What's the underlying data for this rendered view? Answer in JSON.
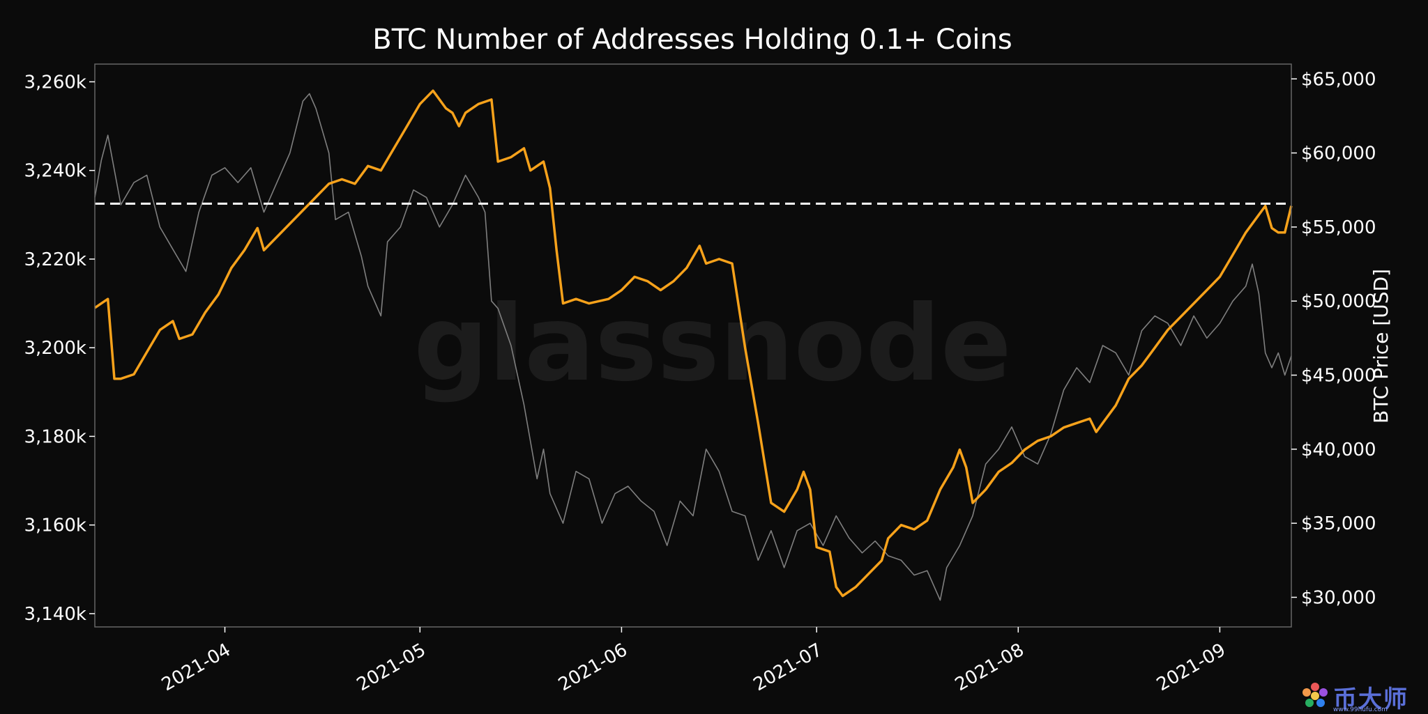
{
  "chart_data": {
    "type": "line",
    "title": "BTC Number of Addresses Holding 0.1+ Coins",
    "watermark": "glassnode",
    "y_left": {
      "range": [
        3137,
        3264
      ],
      "ticks": [
        3140,
        3160,
        3180,
        3200,
        3220,
        3240,
        3260
      ],
      "tick_labels": [
        "3,140k",
        "3,160k",
        "3,180k",
        "3,200k",
        "3,220k",
        "3,240k",
        "3,260k"
      ]
    },
    "y_right": {
      "label": "BTC Price [USD]",
      "range": [
        28000,
        66000
      ],
      "ticks": [
        30000,
        35000,
        40000,
        45000,
        50000,
        55000,
        60000,
        65000
      ],
      "tick_labels": [
        "$30,000",
        "$35,000",
        "$40,000",
        "$45,000",
        "$50,000",
        "$55,000",
        "$60,000",
        "$65,000"
      ]
    },
    "x": {
      "range": [
        "2021-03-12",
        "2021-09-12"
      ],
      "ticks": [
        "2021-04-01",
        "2021-05-01",
        "2021-06-01",
        "2021-07-01",
        "2021-08-01",
        "2021-09-01"
      ],
      "tick_labels": [
        "2021-04",
        "2021-05",
        "2021-06",
        "2021-07",
        "2021-08",
        "2021-09"
      ]
    },
    "reference_line": {
      "value": 3232.5,
      "style": "dashed",
      "color": "#ffffff"
    },
    "series": [
      {
        "name": "Addresses Holding 0.1+ Coins (k)",
        "axis": "left",
        "color": "#f7a21b",
        "points": [
          [
            "2021-03-12",
            3209
          ],
          [
            "2021-03-13",
            3210
          ],
          [
            "2021-03-14",
            3211
          ],
          [
            "2021-03-15",
            3193
          ],
          [
            "2021-03-16",
            3193
          ],
          [
            "2021-03-18",
            3194
          ],
          [
            "2021-03-20",
            3199
          ],
          [
            "2021-03-22",
            3204
          ],
          [
            "2021-03-24",
            3206
          ],
          [
            "2021-03-25",
            3202
          ],
          [
            "2021-03-27",
            3203
          ],
          [
            "2021-03-29",
            3208
          ],
          [
            "2021-03-31",
            3212
          ],
          [
            "2021-04-02",
            3218
          ],
          [
            "2021-04-04",
            3222
          ],
          [
            "2021-04-06",
            3227
          ],
          [
            "2021-04-07",
            3222
          ],
          [
            "2021-04-09",
            3225
          ],
          [
            "2021-04-11",
            3228
          ],
          [
            "2021-04-13",
            3231
          ],
          [
            "2021-04-15",
            3234
          ],
          [
            "2021-04-17",
            3237
          ],
          [
            "2021-04-19",
            3238
          ],
          [
            "2021-04-21",
            3237
          ],
          [
            "2021-04-23",
            3241
          ],
          [
            "2021-04-25",
            3240
          ],
          [
            "2021-04-27",
            3245
          ],
          [
            "2021-04-29",
            3250
          ],
          [
            "2021-05-01",
            3255
          ],
          [
            "2021-05-03",
            3258
          ],
          [
            "2021-05-04",
            3256
          ],
          [
            "2021-05-05",
            3254
          ],
          [
            "2021-05-06",
            3253
          ],
          [
            "2021-05-07",
            3250
          ],
          [
            "2021-05-08",
            3253
          ],
          [
            "2021-05-10",
            3255
          ],
          [
            "2021-05-12",
            3256
          ],
          [
            "2021-05-13",
            3242
          ],
          [
            "2021-05-15",
            3243
          ],
          [
            "2021-05-17",
            3245
          ],
          [
            "2021-05-18",
            3240
          ],
          [
            "2021-05-20",
            3242
          ],
          [
            "2021-05-21",
            3236
          ],
          [
            "2021-05-22",
            3222
          ],
          [
            "2021-05-23",
            3210
          ],
          [
            "2021-05-25",
            3211
          ],
          [
            "2021-05-27",
            3210
          ],
          [
            "2021-05-30",
            3211
          ],
          [
            "2021-06-01",
            3213
          ],
          [
            "2021-06-03",
            3216
          ],
          [
            "2021-06-05",
            3215
          ],
          [
            "2021-06-07",
            3213
          ],
          [
            "2021-06-09",
            3215
          ],
          [
            "2021-06-11",
            3218
          ],
          [
            "2021-06-13",
            3223
          ],
          [
            "2021-06-14",
            3219
          ],
          [
            "2021-06-16",
            3220
          ],
          [
            "2021-06-18",
            3219
          ],
          [
            "2021-06-20",
            3200
          ],
          [
            "2021-06-22",
            3183
          ],
          [
            "2021-06-24",
            3165
          ],
          [
            "2021-06-26",
            3163
          ],
          [
            "2021-06-28",
            3168
          ],
          [
            "2021-06-29",
            3172
          ],
          [
            "2021-06-30",
            3168
          ],
          [
            "2021-07-01",
            3155
          ],
          [
            "2021-07-03",
            3154
          ],
          [
            "2021-07-04",
            3146
          ],
          [
            "2021-07-05",
            3144
          ],
          [
            "2021-07-07",
            3146
          ],
          [
            "2021-07-09",
            3149
          ],
          [
            "2021-07-11",
            3152
          ],
          [
            "2021-07-12",
            3157
          ],
          [
            "2021-07-14",
            3160
          ],
          [
            "2021-07-16",
            3159
          ],
          [
            "2021-07-18",
            3161
          ],
          [
            "2021-07-20",
            3168
          ],
          [
            "2021-07-22",
            3173
          ],
          [
            "2021-07-23",
            3177
          ],
          [
            "2021-07-24",
            3173
          ],
          [
            "2021-07-25",
            3165
          ],
          [
            "2021-07-27",
            3168
          ],
          [
            "2021-07-29",
            3172
          ],
          [
            "2021-07-31",
            3174
          ],
          [
            "2021-08-02",
            3177
          ],
          [
            "2021-08-04",
            3179
          ],
          [
            "2021-08-06",
            3180
          ],
          [
            "2021-08-08",
            3182
          ],
          [
            "2021-08-10",
            3183
          ],
          [
            "2021-08-12",
            3184
          ],
          [
            "2021-08-13",
            3181
          ],
          [
            "2021-08-14",
            3183
          ],
          [
            "2021-08-16",
            3187
          ],
          [
            "2021-08-18",
            3193
          ],
          [
            "2021-08-20",
            3196
          ],
          [
            "2021-08-22",
            3200
          ],
          [
            "2021-08-24",
            3204
          ],
          [
            "2021-08-26",
            3207
          ],
          [
            "2021-08-28",
            3210
          ],
          [
            "2021-08-30",
            3213
          ],
          [
            "2021-09-01",
            3216
          ],
          [
            "2021-09-03",
            3221
          ],
          [
            "2021-09-05",
            3226
          ],
          [
            "2021-09-07",
            3230
          ],
          [
            "2021-09-08",
            3232
          ],
          [
            "2021-09-09",
            3227
          ],
          [
            "2021-09-10",
            3226
          ],
          [
            "2021-09-11",
            3226
          ],
          [
            "2021-09-12",
            3232
          ]
        ]
      },
      {
        "name": "BTC Price [USD]",
        "axis": "right",
        "color": "#7f7f7f",
        "points": [
          [
            "2021-03-12",
            57000
          ],
          [
            "2021-03-13",
            59500
          ],
          [
            "2021-03-14",
            61200
          ],
          [
            "2021-03-16",
            56500
          ],
          [
            "2021-03-18",
            58000
          ],
          [
            "2021-03-20",
            58500
          ],
          [
            "2021-03-22",
            55000
          ],
          [
            "2021-03-24",
            53500
          ],
          [
            "2021-03-26",
            52000
          ],
          [
            "2021-03-28",
            56000
          ],
          [
            "2021-03-30",
            58500
          ],
          [
            "2021-04-01",
            59000
          ],
          [
            "2021-04-03",
            58000
          ],
          [
            "2021-04-05",
            59000
          ],
          [
            "2021-04-07",
            56000
          ],
          [
            "2021-04-09",
            58000
          ],
          [
            "2021-04-11",
            60000
          ],
          [
            "2021-04-13",
            63500
          ],
          [
            "2021-04-14",
            64000
          ],
          [
            "2021-04-15",
            63000
          ],
          [
            "2021-04-16",
            61500
          ],
          [
            "2021-04-17",
            60000
          ],
          [
            "2021-04-18",
            55500
          ],
          [
            "2021-04-20",
            56000
          ],
          [
            "2021-04-22",
            53000
          ],
          [
            "2021-04-23",
            51000
          ],
          [
            "2021-04-25",
            49000
          ],
          [
            "2021-04-26",
            54000
          ],
          [
            "2021-04-28",
            55000
          ],
          [
            "2021-04-30",
            57500
          ],
          [
            "2021-05-02",
            57000
          ],
          [
            "2021-05-04",
            55000
          ],
          [
            "2021-05-06",
            56500
          ],
          [
            "2021-05-08",
            58500
          ],
          [
            "2021-05-10",
            57000
          ],
          [
            "2021-05-11",
            56000
          ],
          [
            "2021-05-12",
            50000
          ],
          [
            "2021-05-13",
            49500
          ],
          [
            "2021-05-15",
            47000
          ],
          [
            "2021-05-17",
            43000
          ],
          [
            "2021-05-19",
            38000
          ],
          [
            "2021-05-20",
            40000
          ],
          [
            "2021-05-21",
            37000
          ],
          [
            "2021-05-23",
            35000
          ],
          [
            "2021-05-25",
            38500
          ],
          [
            "2021-05-27",
            38000
          ],
          [
            "2021-05-29",
            35000
          ],
          [
            "2021-05-31",
            37000
          ],
          [
            "2021-06-02",
            37500
          ],
          [
            "2021-06-04",
            36500
          ],
          [
            "2021-06-06",
            35800
          ],
          [
            "2021-06-08",
            33500
          ],
          [
            "2021-06-10",
            36500
          ],
          [
            "2021-06-12",
            35500
          ],
          [
            "2021-06-14",
            40000
          ],
          [
            "2021-06-16",
            38500
          ],
          [
            "2021-06-18",
            35800
          ],
          [
            "2021-06-20",
            35500
          ],
          [
            "2021-06-22",
            32500
          ],
          [
            "2021-06-24",
            34500
          ],
          [
            "2021-06-26",
            32000
          ],
          [
            "2021-06-28",
            34500
          ],
          [
            "2021-06-30",
            35000
          ],
          [
            "2021-07-02",
            33500
          ],
          [
            "2021-07-04",
            35500
          ],
          [
            "2021-07-06",
            34000
          ],
          [
            "2021-07-08",
            33000
          ],
          [
            "2021-07-10",
            33800
          ],
          [
            "2021-07-12",
            32800
          ],
          [
            "2021-07-14",
            32500
          ],
          [
            "2021-07-16",
            31500
          ],
          [
            "2021-07-18",
            31800
          ],
          [
            "2021-07-20",
            29800
          ],
          [
            "2021-07-21",
            32000
          ],
          [
            "2021-07-23",
            33500
          ],
          [
            "2021-07-25",
            35500
          ],
          [
            "2021-07-27",
            39000
          ],
          [
            "2021-07-29",
            40000
          ],
          [
            "2021-07-31",
            41500
          ],
          [
            "2021-08-02",
            39500
          ],
          [
            "2021-08-04",
            39000
          ],
          [
            "2021-08-06",
            41000
          ],
          [
            "2021-08-08",
            44000
          ],
          [
            "2021-08-10",
            45500
          ],
          [
            "2021-08-12",
            44500
          ],
          [
            "2021-08-14",
            47000
          ],
          [
            "2021-08-16",
            46500
          ],
          [
            "2021-08-18",
            45000
          ],
          [
            "2021-08-20",
            48000
          ],
          [
            "2021-08-22",
            49000
          ],
          [
            "2021-08-24",
            48500
          ],
          [
            "2021-08-26",
            47000
          ],
          [
            "2021-08-28",
            49000
          ],
          [
            "2021-08-30",
            47500
          ],
          [
            "2021-09-01",
            48500
          ],
          [
            "2021-09-03",
            50000
          ],
          [
            "2021-09-05",
            51000
          ],
          [
            "2021-09-06",
            52500
          ],
          [
            "2021-09-07",
            50500
          ],
          [
            "2021-09-08",
            46500
          ],
          [
            "2021-09-09",
            45500
          ],
          [
            "2021-09-10",
            46500
          ],
          [
            "2021-09-11",
            45000
          ],
          [
            "2021-09-12",
            46300
          ]
        ]
      }
    ]
  },
  "brand": {
    "name": "币大师",
    "url": "www.99hufu.com"
  }
}
